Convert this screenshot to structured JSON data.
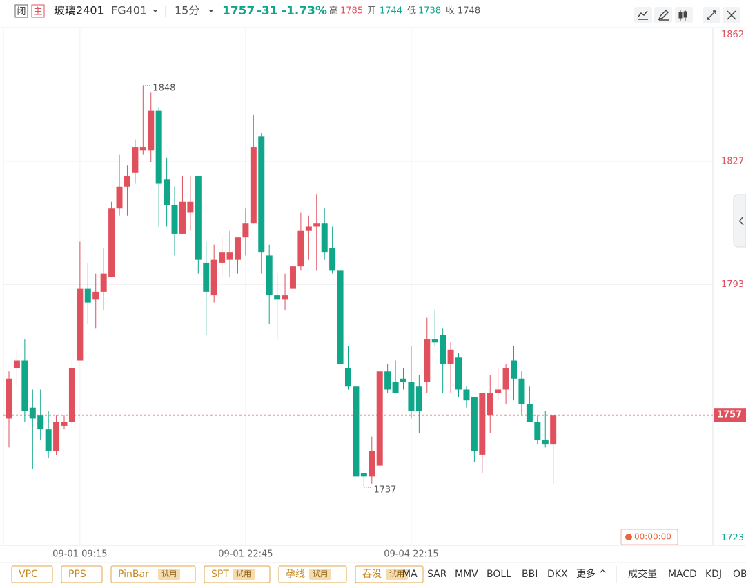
{
  "header": {
    "status": "闭",
    "main": "主",
    "name": "玻璃2401",
    "code": "FG401",
    "period": "15分",
    "price": "1757",
    "change": "-31",
    "change_pct": "-1.73%",
    "high_label": "高",
    "high": "1785",
    "open_label": "开",
    "open": "1744",
    "low_label": "低",
    "low": "1738",
    "close_label": "收",
    "close": "1748"
  },
  "chart_data": {
    "type": "candlestick",
    "categories": [
      null,
      null,
      null,
      null,
      null,
      null,
      null,
      null,
      null,
      "09-01 09:15",
      null,
      null,
      null,
      null,
      null,
      null,
      null,
      null,
      null,
      null,
      null,
      null,
      null,
      null,
      null,
      null,
      null,
      null,
      null,
      null,
      "09-01 22:45",
      null,
      null,
      null,
      null,
      null,
      null,
      null,
      null,
      null,
      null,
      null,
      null,
      null,
      null,
      null,
      null,
      null,
      null,
      null,
      null,
      "09-04 22:15",
      null,
      null,
      null,
      null,
      null,
      null,
      null,
      null,
      null,
      null,
      null,
      null,
      null,
      null,
      null,
      null,
      null,
      null
    ],
    "open": [
      1756,
      1770,
      1772,
      1759,
      1757,
      1753,
      1747,
      1754,
      1755,
      1772,
      1792,
      1789,
      1791,
      1795,
      1814,
      1820,
      1824,
      1830,
      1830,
      1841,
      1822,
      1815,
      1807,
      1813,
      1823,
      1799,
      1790,
      1799,
      1800,
      1800,
      1806,
      1810,
      1834,
      1801,
      1790,
      1789,
      1792,
      1798,
      1808,
      1809,
      1810,
      1803,
      1797,
      1770,
      1765,
      1741,
      1740,
      1743,
      1769,
      1766,
      1767,
      1766,
      1765,
      1766,
      1778,
      1779,
      1771,
      1773,
      1764,
      1762,
      1746,
      1757,
      1763,
      1764,
      1772,
      1767,
      1760,
      1755,
      1750,
      1749
    ],
    "high": [
      1769,
      1775,
      1778,
      1764,
      1764,
      1758,
      1757,
      1757,
      1772,
      1805,
      1799,
      1796,
      1803,
      1816,
      1829,
      1826,
      1833,
      1848,
      1846,
      1842,
      1828,
      1820,
      1823,
      1823,
      1823,
      1805,
      1804,
      1806,
      1808,
      1806,
      1814,
      1840,
      1835,
      1804,
      1796,
      1796,
      1801,
      1813,
      1812,
      1818,
      1814,
      1809,
      1797,
      1776,
      1765,
      1741,
      1751,
      1769,
      1771,
      1772,
      1770,
      1776,
      1768,
      1784,
      1786,
      1781,
      1777,
      1774,
      1765,
      1762,
      1763,
      1768,
      1770,
      1771,
      1776,
      1769,
      1765,
      1757,
      1758,
      1757
    ],
    "low": [
      1748,
      1765,
      1755,
      1742,
      1750,
      1745,
      1746,
      1753,
      1753,
      1772,
      1782,
      1781,
      1786,
      1795,
      1812,
      1812,
      1821,
      1829,
      1827,
      1809,
      1809,
      1801,
      1807,
      1808,
      1796,
      1779,
      1788,
      1795,
      1795,
      1796,
      1801,
      1810,
      1796,
      1782,
      1778,
      1786,
      1789,
      1797,
      1800,
      1797,
      1800,
      1796,
      1771,
      1764,
      1740,
      1737,
      1738,
      1743,
      1763,
      1763,
      1764,
      1756,
      1752,
      1763,
      1776,
      1763,
      1763,
      1762,
      1759,
      1744,
      1741,
      1752,
      1761,
      1760,
      1761,
      1757,
      1755,
      1749,
      1748,
      1738
    ],
    "close": [
      1767,
      1772,
      1758,
      1756,
      1753,
      1747,
      1755,
      1755,
      1770,
      1792,
      1788,
      1791,
      1796,
      1814,
      1820,
      1823,
      1831,
      1831,
      1841,
      1821,
      1815,
      1807,
      1816,
      1816,
      1800,
      1791,
      1800,
      1802,
      1802,
      1806,
      1810,
      1831,
      1802,
      1790,
      1789,
      1790,
      1798,
      1808,
      1809,
      1810,
      1802,
      1797,
      1771,
      1765,
      1740,
      1740,
      1747,
      1769,
      1764,
      1763,
      1766,
      1758,
      1758,
      1778,
      1777,
      1771,
      1775,
      1764,
      1761,
      1747,
      1763,
      1763,
      1764,
      1770,
      1767,
      1760,
      1755,
      1750,
      1749,
      1757
    ],
    "up_color": "#e0505d",
    "down_color": "#0fa68a",
    "ylim": [
      1721,
      1864
    ],
    "yticks": [
      1723,
      1793,
      1827,
      1862
    ],
    "grid": true,
    "clock": "00:00:00"
  },
  "toolbar": {
    "patterns": [
      {
        "name": "VPC"
      },
      {
        "name": "PPS"
      },
      {
        "name": "PinBar",
        "badge": "试用"
      },
      {
        "name": "SPT",
        "badge": "试用"
      },
      {
        "name": "孕线",
        "badge": "试用"
      },
      {
        "name": "吞没",
        "badge": "试用"
      }
    ],
    "indicators": [
      "MA",
      "SAR",
      "MMV",
      "BOLL",
      "BBI",
      "DKX",
      "更多 ^"
    ],
    "subcharts": [
      "成交量",
      "MACD",
      "KDJ",
      "OB"
    ]
  }
}
